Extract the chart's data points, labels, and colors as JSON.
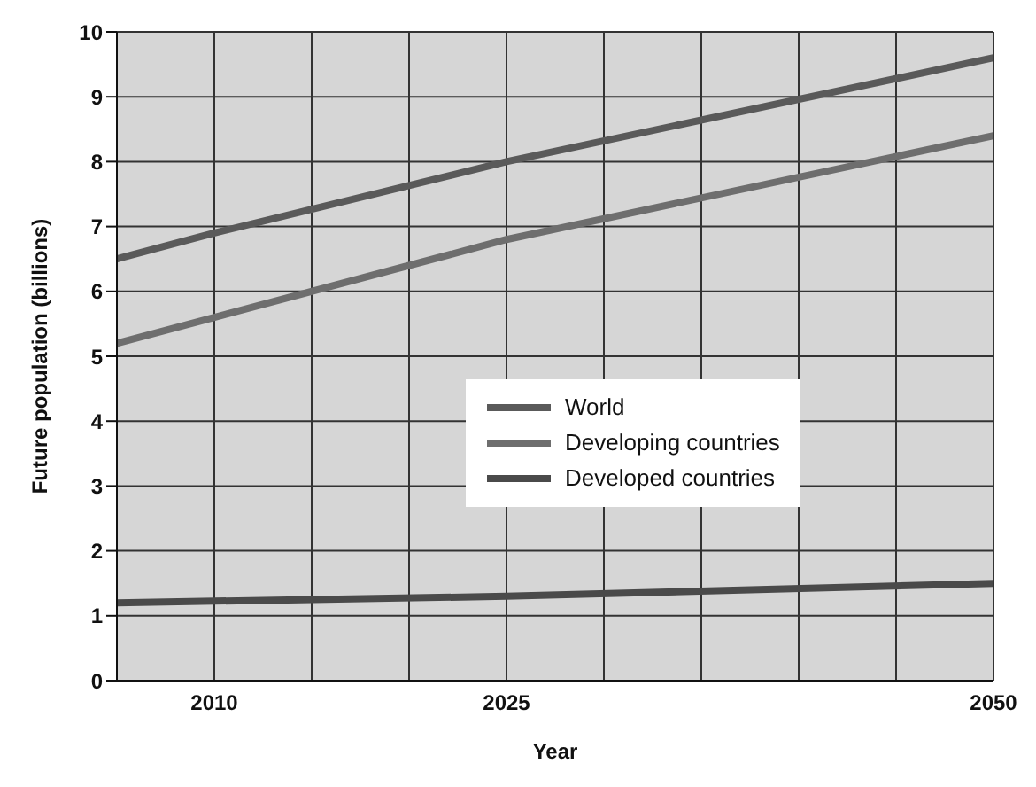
{
  "chart_data": {
    "type": "line",
    "xlabel": "Year",
    "ylabel": "Future population (billions)",
    "xlim": [
      2005,
      2050
    ],
    "xticks": [
      2010,
      {
        "value": 2015,
        "label": null
      },
      {
        "value": 2020,
        "label": null
      },
      2025,
      {
        "value": 2030,
        "label": null
      },
      {
        "value": 2035,
        "label": null
      },
      {
        "value": 2040,
        "label": null
      },
      {
        "value": 2045,
        "label": null
      },
      2050
    ],
    "ylim": [
      0,
      10
    ],
    "yticks": [
      0,
      1,
      2,
      3,
      4,
      5,
      6,
      7,
      8,
      9,
      10
    ],
    "grid": true,
    "legend": "right",
    "series": [
      {
        "name": "World",
        "color": "#5a5a5a",
        "x": [
          2005,
          2010,
          2025,
          2050
        ],
        "values": [
          6.5,
          6.9,
          8.0,
          9.6
        ]
      },
      {
        "name": "Developing countries",
        "color": "#6e6e6e",
        "x": [
          2005,
          2010,
          2025,
          2050
        ],
        "values": [
          5.2,
          5.6,
          6.8,
          8.4
        ]
      },
      {
        "name": "Developed countries",
        "color": "#4a4a4a",
        "x": [
          2005,
          2025,
          2050
        ],
        "values": [
          1.2,
          1.3,
          1.5
        ]
      }
    ]
  }
}
